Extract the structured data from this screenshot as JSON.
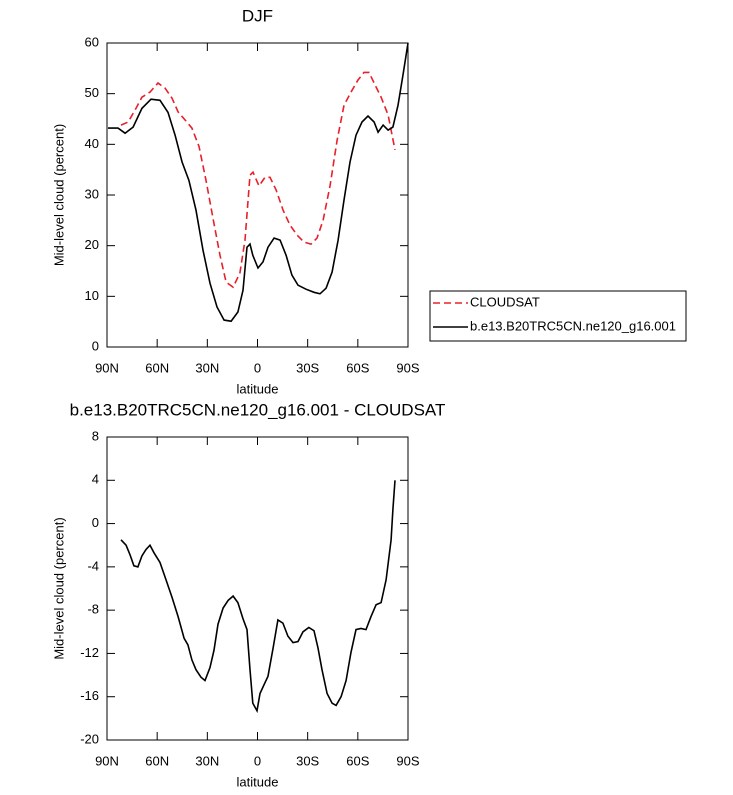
{
  "chart_data": [
    {
      "type": "line",
      "title": "DJF",
      "xlabel": "latitude",
      "ylabel": "Mid-level cloud (percent)",
      "xlim": [
        90,
        -90
      ],
      "ylim": [
        0,
        60
      ],
      "xticks": [
        {
          "value": 90,
          "label": "90N"
        },
        {
          "value": 60,
          "label": "60N"
        },
        {
          "value": 30,
          "label": "30N"
        },
        0,
        {
          "value": -30,
          "label": "30S"
        },
        {
          "value": -60,
          "label": "60S"
        },
        {
          "value": -90,
          "label": "90S"
        }
      ],
      "yticks": [
        0,
        10,
        20,
        30,
        40,
        50,
        60
      ],
      "legend": "right",
      "series": [
        {
          "name": "CLOUDSAT",
          "color": "#e8202a",
          "dash": "dashed",
          "x": [
            81.6,
            77.4,
            73.3,
            69.1,
            64.3,
            59.5,
            55.3,
            51.1,
            47.5,
            43.3,
            39.2,
            35.0,
            30.8,
            26.6,
            22.4,
            18.8,
            14.6,
            10.5,
            7.5,
            4.5,
            2.7,
            -0.9,
            -4.5,
            -7.5,
            -11.1,
            -15.3,
            -19.4,
            -23.6,
            -27.8,
            -32.0,
            -35.6,
            -39.2,
            -43.4,
            -47.6,
            -51.7,
            -55.9,
            -60.1,
            -63.7,
            -66.7,
            -69.7,
            -73.9,
            -78.1,
            -82.2
          ],
          "values": [
            43.8,
            44.4,
            46.7,
            49.3,
            50.3,
            52.1,
            51.1,
            49.1,
            46.4,
            44.8,
            43.2,
            39.6,
            32.9,
            25.4,
            18.1,
            12.8,
            11.8,
            14.6,
            21.1,
            33.9,
            34.5,
            31.8,
            33.5,
            33.5,
            31.0,
            27.0,
            24.1,
            22.1,
            20.7,
            20.3,
            21.5,
            25.0,
            31.9,
            40.8,
            47.7,
            50.3,
            52.7,
            54.2,
            54.2,
            52.1,
            49.3,
            45.8,
            38.9
          ]
        },
        {
          "name": "b.e13.B20TRC5CN.ne120_g16.001",
          "color": "#000000",
          "dash": "solid",
          "x": [
            89.4,
            83.4,
            79.2,
            74.4,
            69.1,
            63.7,
            58.3,
            53.5,
            49.3,
            45.1,
            41.0,
            36.8,
            32.6,
            28.4,
            24.2,
            20.0,
            15.8,
            11.7,
            8.7,
            6.3,
            4.5,
            2.8,
            -0.3,
            -3.3,
            -6.3,
            -9.9,
            -13.5,
            -17.1,
            -20.6,
            -24.2,
            -29.0,
            -33.8,
            -37.4,
            -41.0,
            -44.6,
            -48.2,
            -51.7,
            -55.3,
            -58.9,
            -62.5,
            -66.1,
            -69.7,
            -72.1,
            -75.1,
            -78.1,
            -81.0,
            -84.0,
            -87.0,
            -90
          ],
          "values": [
            43.2,
            43.2,
            42.2,
            43.4,
            47.1,
            48.9,
            48.7,
            46.3,
            41.8,
            36.5,
            32.9,
            27.0,
            19.1,
            12.6,
            7.9,
            5.3,
            5.1,
            6.9,
            11.2,
            19.7,
            20.3,
            18.1,
            15.6,
            16.8,
            19.7,
            21.5,
            21.1,
            18.1,
            14.2,
            12.2,
            11.4,
            10.8,
            10.5,
            11.6,
            14.8,
            21.1,
            29.0,
            36.5,
            41.8,
            44.4,
            45.6,
            44.4,
            42.4,
            43.8,
            42.8,
            43.4,
            47.7,
            53.7,
            60
          ]
        }
      ]
    },
    {
      "type": "line",
      "title": "b.e13.B20TRC5CN.ne120_g16.001 - CLOUDSAT",
      "xlabel": "latitude",
      "ylabel": "Mid-level cloud (percent)",
      "xlim": [
        90,
        -90
      ],
      "ylim": [
        -20,
        8
      ],
      "xticks": [
        {
          "value": 90,
          "label": "90N"
        },
        {
          "value": 60,
          "label": "60N"
        },
        {
          "value": 30,
          "label": "30N"
        },
        0,
        {
          "value": -30,
          "label": "30S"
        },
        {
          "value": -60,
          "label": "60S"
        },
        {
          "value": -90,
          "label": "90S"
        }
      ],
      "yticks": [
        -20,
        -16,
        -12,
        -8,
        -4,
        0,
        4,
        8
      ],
      "color": "#000000",
      "x": [
        81.6,
        78.6,
        76.2,
        73.9,
        71.5,
        69.1,
        66.7,
        64.3,
        61.9,
        58.3,
        54.7,
        51.1,
        47.5,
        43.9,
        41.6,
        39.2,
        36.8,
        33.8,
        31.4,
        28.4,
        26.0,
        23.6,
        20.6,
        17.6,
        14.6,
        11.7,
        8.7,
        6.3,
        4.5,
        2.8,
        0.3,
        -1.5,
        -3.9,
        -6.3,
        -9.3,
        -12.2,
        -15.2,
        -18.2,
        -21.2,
        -24.2,
        -27.2,
        -30.7,
        -33.8,
        -36.2,
        -38.6,
        -41.6,
        -44.6,
        -47.0,
        -50.0,
        -53.0,
        -55.9,
        -58.9,
        -61.9,
        -64.9,
        -67.9,
        -70.9,
        -73.9,
        -76.9,
        -79.9,
        -81.0,
        -82.2
      ],
      "values": [
        -1.5,
        -2.0,
        -2.9,
        -3.9,
        -4.0,
        -3.0,
        -2.4,
        -2.0,
        -2.7,
        -3.6,
        -5.2,
        -6.8,
        -8.6,
        -10.6,
        -11.2,
        -12.6,
        -13.5,
        -14.2,
        -14.5,
        -13.3,
        -11.7,
        -9.3,
        -7.8,
        -7.1,
        -6.7,
        -7.3,
        -8.8,
        -9.8,
        -13.5,
        -16.6,
        -17.3,
        -15.7,
        -14.9,
        -14.1,
        -11.5,
        -8.9,
        -9.2,
        -10.4,
        -11.0,
        -10.9,
        -10.0,
        -9.6,
        -9.9,
        -11.5,
        -13.5,
        -15.7,
        -16.6,
        -16.8,
        -16.0,
        -14.5,
        -11.9,
        -9.8,
        -9.7,
        -9.8,
        -8.6,
        -7.5,
        -7.3,
        -5.2,
        -1.5,
        1.3,
        4.0
      ]
    }
  ]
}
